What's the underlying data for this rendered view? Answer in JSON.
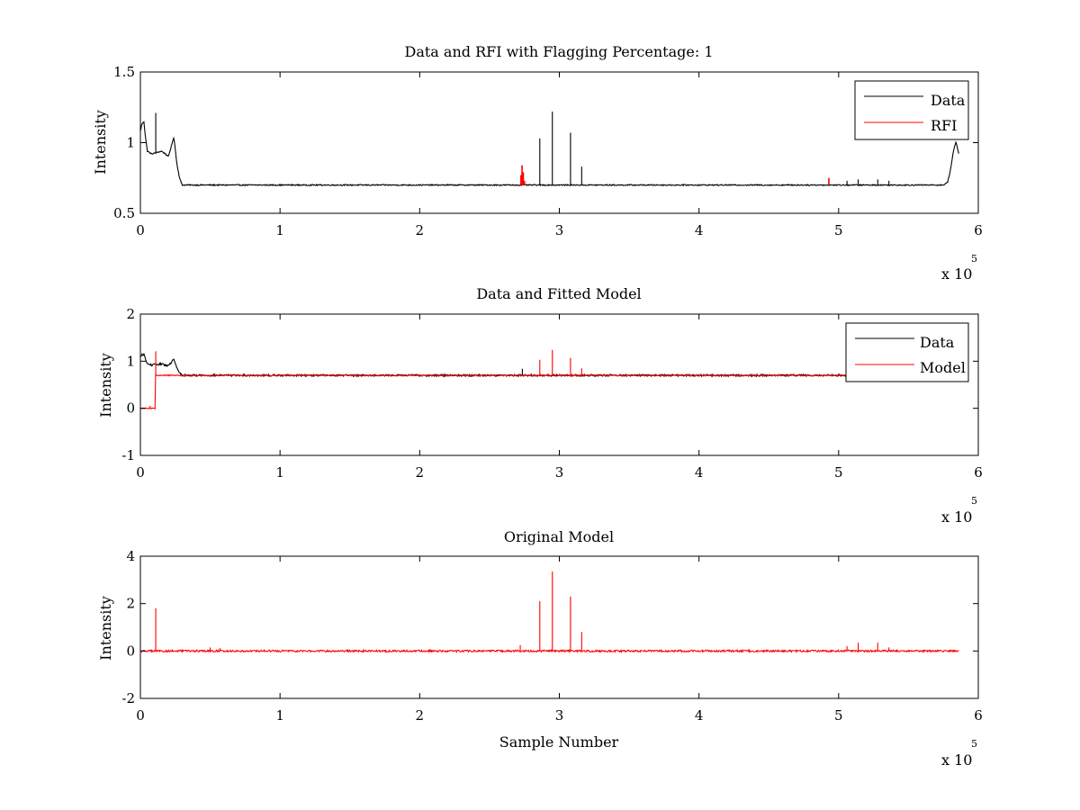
{
  "chart_data": [
    {
      "type": "line",
      "title": "Data and RFI with Flagging Percentage: 1",
      "xlabel": "",
      "ylabel": "Intensity",
      "xlim": [
        0,
        600000
      ],
      "ylim": [
        0.5,
        1.5
      ],
      "xticks": [
        0,
        1,
        2,
        3,
        4,
        5,
        6
      ],
      "yticks": [
        0.5,
        1,
        1.5
      ],
      "xtick_labels": [
        "0",
        "1",
        "2",
        "3",
        "4",
        "5",
        "6"
      ],
      "ytick_labels": [
        "0.5",
        "1",
        "1.5"
      ],
      "x_multiplier": {
        "base": "x 10",
        "exponent": "5"
      },
      "legend": {
        "position": "top-right",
        "entries": [
          {
            "name": "Data",
            "color": "#000000"
          },
          {
            "name": "RFI",
            "color": "#ff0000"
          }
        ]
      },
      "series": [
        {
          "name": "Data",
          "color": "#000000",
          "baseline_x": [
            0,
            1000,
            2500,
            3500,
            5000,
            8000,
            12000,
            15000,
            18000,
            20000,
            22000,
            24000,
            26000,
            28000,
            30000,
            40000,
            100000,
            200000,
            300000,
            400000,
            500000,
            560000,
            575000,
            578000,
            580000,
            582000,
            584000,
            586000
          ],
          "baseline_y": [
            1.08,
            1.13,
            1.15,
            1.05,
            0.94,
            0.92,
            0.93,
            0.94,
            0.92,
            0.9,
            0.97,
            1.04,
            0.86,
            0.75,
            0.7,
            0.7,
            0.7,
            0.7,
            0.7,
            0.7,
            0.7,
            0.7,
            0.7,
            0.72,
            0.8,
            0.93,
            1.01,
            0.92
          ],
          "noise_amplitude": 0.004,
          "spikes": [
            {
              "x": 11000,
              "y": 1.21
            },
            {
              "x": 286000,
              "y": 1.03
            },
            {
              "x": 295000,
              "y": 1.22
            },
            {
              "x": 308000,
              "y": 1.07
            },
            {
              "x": 316000,
              "y": 0.83
            },
            {
              "x": 274000,
              "y": 0.79
            },
            {
              "x": 506000,
              "y": 0.73
            },
            {
              "x": 514000,
              "y": 0.74
            },
            {
              "x": 528000,
              "y": 0.74
            },
            {
              "x": 536000,
              "y": 0.73
            }
          ]
        },
        {
          "name": "RFI",
          "color": "#ff0000",
          "spikes": [
            {
              "x": 272500,
              "y": 0.77,
              "base": 0.7
            },
            {
              "x": 273300,
              "y": 0.84,
              "base": 0.7
            },
            {
              "x": 274200,
              "y": 0.79,
              "base": 0.7
            },
            {
              "x": 275000,
              "y": 0.73,
              "base": 0.7
            },
            {
              "x": 493000,
              "y": 0.75,
              "base": 0.7
            }
          ]
        }
      ]
    },
    {
      "type": "line",
      "title": "Data and Fitted Model",
      "xlabel": "",
      "ylabel": "Intensity",
      "xlim": [
        0,
        600000
      ],
      "ylim": [
        -1,
        2
      ],
      "xticks": [
        0,
        1,
        2,
        3,
        4,
        5,
        6
      ],
      "yticks": [
        -1,
        0,
        1,
        2
      ],
      "xtick_labels": [
        "0",
        "1",
        "2",
        "3",
        "4",
        "5",
        "6"
      ],
      "ytick_labels": [
        "-1",
        "0",
        "1",
        "2"
      ],
      "x_multiplier": {
        "base": "x 10",
        "exponent": "5"
      },
      "legend": {
        "position": "top-right",
        "entries": [
          {
            "name": "Data",
            "color": "#000000"
          },
          {
            "name": "Model",
            "color": "#ff0000"
          }
        ]
      },
      "series": [
        {
          "name": "Data",
          "color": "#000000",
          "baseline_x": [
            0,
            1000,
            2500,
            3500,
            5000,
            8000,
            12000,
            15000,
            18000,
            20000,
            22000,
            24000,
            26000,
            28000,
            30000,
            40000,
            100000,
            200000,
            300000,
            400000,
            500000,
            586000
          ],
          "baseline_y": [
            1.08,
            1.13,
            1.15,
            1.05,
            0.94,
            0.92,
            0.93,
            0.94,
            0.92,
            0.9,
            0.97,
            1.04,
            0.86,
            0.75,
            0.7,
            0.7,
            0.7,
            0.7,
            0.7,
            0.7,
            0.7,
            0.7
          ],
          "noise_amplitude": 0.02,
          "spikes": [
            {
              "x": 273500,
              "y": 0.84
            }
          ]
        },
        {
          "name": "Model",
          "color": "#ff0000",
          "step_x": [
            0,
            9000,
            10500,
            586000
          ],
          "step_y": [
            0.0,
            0.0,
            0.7,
            0.7
          ],
          "noise_amplitude": 0.01,
          "spikes": [
            {
              "x": 7000,
              "y": 0.05,
              "base": 0.0
            },
            {
              "x": 11000,
              "y": 1.21,
              "base": 0.7
            },
            {
              "x": 286000,
              "y": 1.03,
              "base": 0.7
            },
            {
              "x": 295000,
              "y": 1.24,
              "base": 0.7
            },
            {
              "x": 308000,
              "y": 1.07,
              "base": 0.7
            },
            {
              "x": 316000,
              "y": 0.85,
              "base": 0.7
            }
          ]
        }
      ]
    },
    {
      "type": "line",
      "title": "Original Model",
      "xlabel": "Sample Number",
      "ylabel": "Intensity",
      "xlim": [
        0,
        600000
      ],
      "ylim": [
        -2,
        4
      ],
      "xticks": [
        0,
        1,
        2,
        3,
        4,
        5,
        6
      ],
      "yticks": [
        -2,
        0,
        2,
        4
      ],
      "xtick_labels": [
        "0",
        "1",
        "2",
        "3",
        "4",
        "5",
        "6"
      ],
      "ytick_labels": [
        "-2",
        "0",
        "2",
        "4"
      ],
      "x_multiplier": {
        "base": "x 10",
        "exponent": "5"
      },
      "series": [
        {
          "name": "",
          "color": "#ff0000",
          "baseline_x": [
            0,
            586000
          ],
          "baseline_y": [
            0.0,
            0.0
          ],
          "noise_amplitude": 0.04,
          "spikes": [
            {
              "x": 11000,
              "y": 1.8
            },
            {
              "x": 50000,
              "y": 0.15
            },
            {
              "x": 57000,
              "y": 0.12
            },
            {
              "x": 272000,
              "y": 0.25
            },
            {
              "x": 286000,
              "y": 2.1
            },
            {
              "x": 295000,
              "y": 3.35
            },
            {
              "x": 308000,
              "y": 2.3
            },
            {
              "x": 316000,
              "y": 0.8
            },
            {
              "x": 506000,
              "y": 0.2
            },
            {
              "x": 514000,
              "y": 0.35
            },
            {
              "x": 528000,
              "y": 0.35
            },
            {
              "x": 536000,
              "y": 0.15
            }
          ]
        }
      ]
    }
  ]
}
